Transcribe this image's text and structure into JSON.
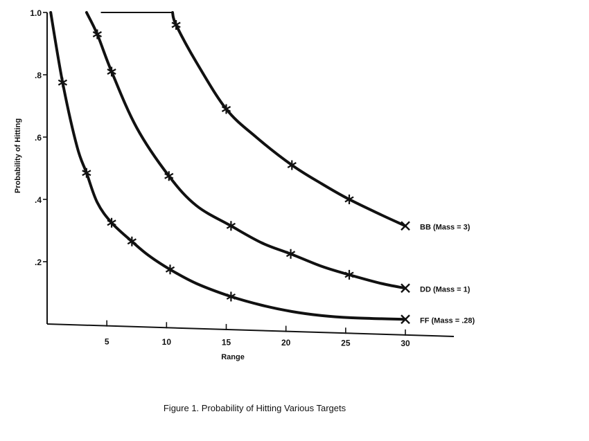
{
  "caption": "Figure 1. Probability of Hitting Various Targets",
  "chart_data": {
    "type": "line",
    "title": "",
    "xlabel": "Range",
    "ylabel": "Probability of Hitting",
    "xlim": [
      0,
      32
    ],
    "ylim": [
      0,
      1.0
    ],
    "x_ticks": [
      5,
      10,
      15,
      20,
      25,
      30
    ],
    "x_tick_labels": [
      "5",
      "10",
      "15",
      "20",
      "25",
      "30"
    ],
    "y_ticks": [
      0.2,
      0.4,
      0.6,
      0.8,
      1.0
    ],
    "y_tick_labels": [
      ".2",
      ".4",
      ".6",
      ".8",
      "1.0"
    ],
    "grid": false,
    "series": [
      {
        "name": "BB (Mass = 3)",
        "curve": [
          [
            4.5,
            1.0
          ],
          [
            10.5,
            1.0
          ],
          [
            10.8,
            0.96
          ],
          [
            12.5,
            0.84
          ],
          [
            15,
            0.69
          ],
          [
            17.5,
            0.6
          ],
          [
            20.5,
            0.51
          ],
          [
            23,
            0.45
          ],
          [
            25.3,
            0.4
          ],
          [
            28,
            0.35
          ],
          [
            30,
            0.315
          ]
        ],
        "markers": [
          [
            10.8,
            0.96
          ],
          [
            15,
            0.69
          ],
          [
            20.5,
            0.51
          ],
          [
            25.3,
            0.4
          ]
        ],
        "end_marker": [
          30,
          0.315
        ]
      },
      {
        "name": "DD (Mass = 1)",
        "curve": [
          [
            3.3,
            1.0
          ],
          [
            4.2,
            0.93
          ],
          [
            5.4,
            0.81
          ],
          [
            7.5,
            0.63
          ],
          [
            10.2,
            0.475
          ],
          [
            12.5,
            0.38
          ],
          [
            15.4,
            0.315
          ],
          [
            18,
            0.26
          ],
          [
            20.4,
            0.225
          ],
          [
            23,
            0.185
          ],
          [
            25.3,
            0.158
          ],
          [
            28,
            0.13
          ],
          [
            30,
            0.115
          ]
        ],
        "markers": [
          [
            4.2,
            0.93
          ],
          [
            5.4,
            0.81
          ],
          [
            10.2,
            0.475
          ],
          [
            15.4,
            0.315
          ],
          [
            20.4,
            0.225
          ],
          [
            25.3,
            0.158
          ]
        ],
        "end_marker": [
          30,
          0.115
        ]
      },
      {
        "name": "FF (Mass = .28)",
        "curve": [
          [
            0.3,
            1.0
          ],
          [
            1.3,
            0.775
          ],
          [
            2.5,
            0.57
          ],
          [
            3.3,
            0.485
          ],
          [
            4.2,
            0.39
          ],
          [
            5.4,
            0.325
          ],
          [
            7.1,
            0.265
          ],
          [
            8.5,
            0.22
          ],
          [
            10.3,
            0.175
          ],
          [
            12.5,
            0.13
          ],
          [
            15.4,
            0.088
          ],
          [
            18,
            0.06
          ],
          [
            20.5,
            0.04
          ],
          [
            23,
            0.027
          ],
          [
            25.5,
            0.02
          ],
          [
            28,
            0.017
          ],
          [
            30,
            0.015
          ]
        ],
        "markers": [
          [
            1.3,
            0.775
          ],
          [
            3.3,
            0.485
          ],
          [
            5.4,
            0.325
          ],
          [
            7.1,
            0.265
          ],
          [
            10.3,
            0.175
          ],
          [
            15.4,
            0.088
          ]
        ],
        "end_marker": [
          30,
          0.015
        ]
      }
    ]
  }
}
